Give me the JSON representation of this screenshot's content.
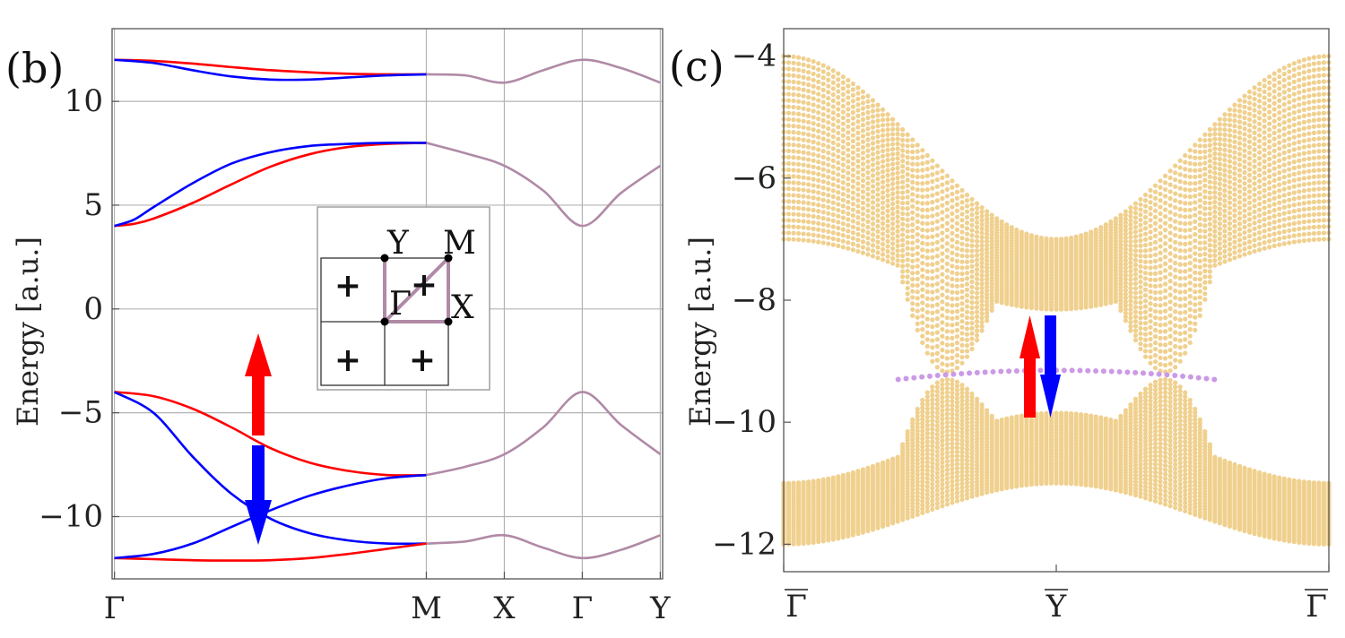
{
  "colors": {
    "spin_up": "#ff0000",
    "spin_down": "#0000ff",
    "degenerate": "#b08aa6",
    "bulk_dots": "#f0d08e",
    "edge_dots": "#cc99e6",
    "grid": "#b4b4b4",
    "axes": "#555555"
  },
  "chart_data": [
    {
      "type": "line",
      "panel_label": "(b)",
      "ylabel": "Energy [a.u.]",
      "ylim": [
        -13,
        13.5
      ],
      "xlim": [
        -0.03,
        7.03
      ],
      "grid": true,
      "yticks": [
        10,
        5,
        0,
        -5,
        -10
      ],
      "ytick_labels": [
        "10",
        "5",
        "0",
        "−5",
        "−10"
      ],
      "xticks": [
        0,
        4,
        5,
        6,
        7
      ],
      "xtick_labels": [
        "Γ",
        "M",
        "X",
        "Γ",
        "Y"
      ],
      "series": [
        {
          "name": "band1-up",
          "color": "spin_up",
          "x": [
            0,
            0.5,
            1,
            1.5,
            2,
            2.5,
            3,
            3.5,
            4
          ],
          "y": [
            12,
            11.95,
            11.82,
            11.65,
            11.5,
            11.4,
            11.33,
            11.3,
            11.3
          ]
        },
        {
          "name": "band1-down",
          "color": "spin_down",
          "x": [
            0,
            0.5,
            1,
            1.5,
            2,
            2.5,
            3,
            3.5,
            4
          ],
          "y": [
            12,
            11.85,
            11.5,
            11.2,
            11.05,
            11.05,
            11.15,
            11.25,
            11.3
          ]
        },
        {
          "name": "band2-up",
          "color": "spin_up",
          "x": [
            0,
            0.25,
            0.5,
            1,
            1.5,
            2,
            2.5,
            3,
            3.5,
            4
          ],
          "y": [
            4,
            4.1,
            4.35,
            5.1,
            6.0,
            6.85,
            7.45,
            7.8,
            7.95,
            8
          ]
        },
        {
          "name": "band2-down",
          "color": "spin_down",
          "x": [
            0,
            0.25,
            0.5,
            1,
            1.5,
            2,
            2.5,
            3,
            3.5,
            4
          ],
          "y": [
            4,
            4.3,
            4.9,
            6.05,
            7.0,
            7.55,
            7.85,
            7.95,
            8,
            8
          ]
        },
        {
          "name": "band3-up",
          "color": "spin_up",
          "x": [
            0,
            0.5,
            1,
            1.5,
            2,
            2.5,
            3,
            3.5,
            4
          ],
          "y": [
            -4,
            -4.2,
            -4.8,
            -5.7,
            -6.7,
            -7.4,
            -7.8,
            -8,
            -8
          ]
        },
        {
          "name": "band3-down",
          "color": "spin_down",
          "x": [
            0,
            0.5,
            1,
            1.5,
            2,
            2.5,
            3,
            3.5,
            4
          ],
          "y": [
            -4,
            -5,
            -7.1,
            -8.9,
            -10.1,
            -10.8,
            -11.15,
            -11.3,
            -11.3
          ]
        },
        {
          "name": "band4-up",
          "color": "spin_up",
          "x": [
            0,
            0.5,
            1,
            1.5,
            2,
            2.5,
            3,
            3.5,
            4
          ],
          "y": [
            -12,
            -12.05,
            -12.1,
            -12.12,
            -12.1,
            -12,
            -11.8,
            -11.55,
            -11.3
          ]
        },
        {
          "name": "band4-down",
          "color": "spin_down",
          "x": [
            0,
            0.5,
            1,
            1.5,
            2,
            2.5,
            3,
            3.5,
            4
          ],
          "y": [
            -12,
            -11.8,
            -11.3,
            -10.5,
            -9.7,
            -9,
            -8.5,
            -8.15,
            -8
          ]
        },
        {
          "name": "band1-deg",
          "color": "degenerate",
          "x": [
            4,
            4.5,
            5,
            5.5,
            6,
            6.5,
            7
          ],
          "y": [
            11.3,
            11.25,
            10.9,
            11.5,
            12,
            11.6,
            10.9
          ]
        },
        {
          "name": "band2-deg",
          "color": "degenerate",
          "x": [
            4,
            4.5,
            5,
            5.5,
            6,
            6.5,
            7
          ],
          "y": [
            8,
            7.5,
            6.9,
            5.7,
            4,
            5.6,
            6.9
          ]
        },
        {
          "name": "band3-deg",
          "color": "degenerate",
          "x": [
            4,
            4.5,
            5,
            5.5,
            6,
            6.5,
            7
          ],
          "y": [
            -8,
            -7.6,
            -7,
            -5.7,
            -4,
            -5.6,
            -7
          ]
        },
        {
          "name": "band4-deg",
          "color": "degenerate",
          "x": [
            4,
            4.5,
            5,
            5.5,
            6,
            6.5,
            7
          ],
          "y": [
            -11.3,
            -11.2,
            -10.9,
            -11.5,
            -12,
            -11.6,
            -10.9
          ]
        }
      ],
      "arrows": [
        {
          "name": "up-arrow",
          "direction": "up",
          "color": "spin_up"
        },
        {
          "name": "down-arrow",
          "direction": "down",
          "color": "spin_down"
        }
      ],
      "inset": {
        "labels": {
          "y": "Y",
          "m": "M",
          "gamma": "Γ",
          "x": "X"
        },
        "cross_symbol": "+",
        "crosses": [
          {
            "quadrant": "top-left",
            "color": "spin_up"
          },
          {
            "quadrant": "top-right",
            "color": "spin_down"
          },
          {
            "quadrant": "bottom-left",
            "color": "spin_down"
          },
          {
            "quadrant": "bottom-right",
            "color": "spin_up"
          }
        ]
      }
    },
    {
      "type": "scatter",
      "panel_label": "(c)",
      "ylabel": "Energy [a.u.]",
      "ylim": [
        -12.45,
        -3.55
      ],
      "xlim": [
        0,
        2
      ],
      "yticks": [
        -4,
        -6,
        -8,
        -10,
        -12
      ],
      "ytick_labels": [
        "−4",
        "−6",
        "−8",
        "−10",
        "−12"
      ],
      "xticks": [
        0,
        1,
        2
      ],
      "xtick_labels": [
        "Γ",
        "Y",
        "Γ"
      ],
      "xtick_overline": true,
      "bulk_bands": [
        {
          "name": "upper-bulk",
          "envelope": "cos",
          "top_range": [
            -4,
            -7
          ],
          "bottom_range": [
            -7,
            -8.15
          ],
          "gap_bottom": -9.25
        },
        {
          "name": "lower-bulk",
          "envelope": "cos",
          "top_range": [
            -11,
            -9.85
          ],
          "bottom_range": [
            -12,
            -11
          ],
          "gap_top": -9.25
        }
      ],
      "edge_state": {
        "x_range": [
          0.42,
          1.58
        ],
        "y_center": -9.15,
        "y_end": -9.3
      },
      "arrows": [
        {
          "name": "up-arrow",
          "direction": "up",
          "color": "spin_up"
        },
        {
          "name": "down-arrow",
          "direction": "down",
          "color": "spin_down"
        }
      ]
    }
  ]
}
